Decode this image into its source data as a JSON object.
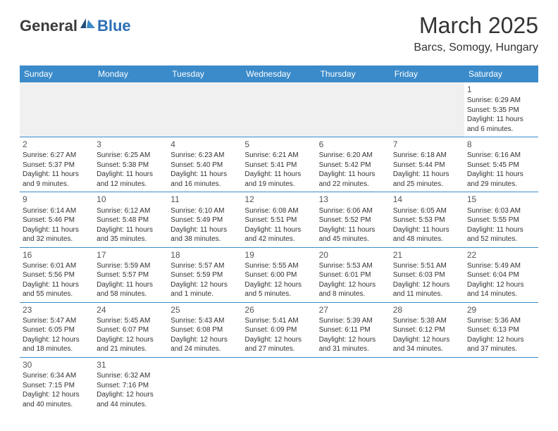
{
  "logo": {
    "part1": "General",
    "part2": "Blue"
  },
  "title": "March 2025",
  "location": "Barcs, Somogy, Hungary",
  "weekdays": [
    "Sunday",
    "Monday",
    "Tuesday",
    "Wednesday",
    "Thursday",
    "Friday",
    "Saturday"
  ],
  "colors": {
    "header_bg": "#3b8bca",
    "header_text": "#ffffff",
    "border": "#3b8bca",
    "logo_blue": "#2b6fb5",
    "logo_gray": "#3a3a3a"
  },
  "weeks": [
    [
      null,
      null,
      null,
      null,
      null,
      null,
      {
        "n": "1",
        "sr": "6:29 AM",
        "ss": "5:35 PM",
        "dl": "11 hours and 6 minutes."
      }
    ],
    [
      {
        "n": "2",
        "sr": "6:27 AM",
        "ss": "5:37 PM",
        "dl": "11 hours and 9 minutes."
      },
      {
        "n": "3",
        "sr": "6:25 AM",
        "ss": "5:38 PM",
        "dl": "11 hours and 12 minutes."
      },
      {
        "n": "4",
        "sr": "6:23 AM",
        "ss": "5:40 PM",
        "dl": "11 hours and 16 minutes."
      },
      {
        "n": "5",
        "sr": "6:21 AM",
        "ss": "5:41 PM",
        "dl": "11 hours and 19 minutes."
      },
      {
        "n": "6",
        "sr": "6:20 AM",
        "ss": "5:42 PM",
        "dl": "11 hours and 22 minutes."
      },
      {
        "n": "7",
        "sr": "6:18 AM",
        "ss": "5:44 PM",
        "dl": "11 hours and 25 minutes."
      },
      {
        "n": "8",
        "sr": "6:16 AM",
        "ss": "5:45 PM",
        "dl": "11 hours and 29 minutes."
      }
    ],
    [
      {
        "n": "9",
        "sr": "6:14 AM",
        "ss": "5:46 PM",
        "dl": "11 hours and 32 minutes."
      },
      {
        "n": "10",
        "sr": "6:12 AM",
        "ss": "5:48 PM",
        "dl": "11 hours and 35 minutes."
      },
      {
        "n": "11",
        "sr": "6:10 AM",
        "ss": "5:49 PM",
        "dl": "11 hours and 38 minutes."
      },
      {
        "n": "12",
        "sr": "6:08 AM",
        "ss": "5:51 PM",
        "dl": "11 hours and 42 minutes."
      },
      {
        "n": "13",
        "sr": "6:06 AM",
        "ss": "5:52 PM",
        "dl": "11 hours and 45 minutes."
      },
      {
        "n": "14",
        "sr": "6:05 AM",
        "ss": "5:53 PM",
        "dl": "11 hours and 48 minutes."
      },
      {
        "n": "15",
        "sr": "6:03 AM",
        "ss": "5:55 PM",
        "dl": "11 hours and 52 minutes."
      }
    ],
    [
      {
        "n": "16",
        "sr": "6:01 AM",
        "ss": "5:56 PM",
        "dl": "11 hours and 55 minutes."
      },
      {
        "n": "17",
        "sr": "5:59 AM",
        "ss": "5:57 PM",
        "dl": "11 hours and 58 minutes."
      },
      {
        "n": "18",
        "sr": "5:57 AM",
        "ss": "5:59 PM",
        "dl": "12 hours and 1 minute."
      },
      {
        "n": "19",
        "sr": "5:55 AM",
        "ss": "6:00 PM",
        "dl": "12 hours and 5 minutes."
      },
      {
        "n": "20",
        "sr": "5:53 AM",
        "ss": "6:01 PM",
        "dl": "12 hours and 8 minutes."
      },
      {
        "n": "21",
        "sr": "5:51 AM",
        "ss": "6:03 PM",
        "dl": "12 hours and 11 minutes."
      },
      {
        "n": "22",
        "sr": "5:49 AM",
        "ss": "6:04 PM",
        "dl": "12 hours and 14 minutes."
      }
    ],
    [
      {
        "n": "23",
        "sr": "5:47 AM",
        "ss": "6:05 PM",
        "dl": "12 hours and 18 minutes."
      },
      {
        "n": "24",
        "sr": "5:45 AM",
        "ss": "6:07 PM",
        "dl": "12 hours and 21 minutes."
      },
      {
        "n": "25",
        "sr": "5:43 AM",
        "ss": "6:08 PM",
        "dl": "12 hours and 24 minutes."
      },
      {
        "n": "26",
        "sr": "5:41 AM",
        "ss": "6:09 PM",
        "dl": "12 hours and 27 minutes."
      },
      {
        "n": "27",
        "sr": "5:39 AM",
        "ss": "6:11 PM",
        "dl": "12 hours and 31 minutes."
      },
      {
        "n": "28",
        "sr": "5:38 AM",
        "ss": "6:12 PM",
        "dl": "12 hours and 34 minutes."
      },
      {
        "n": "29",
        "sr": "5:36 AM",
        "ss": "6:13 PM",
        "dl": "12 hours and 37 minutes."
      }
    ],
    [
      {
        "n": "30",
        "sr": "6:34 AM",
        "ss": "7:15 PM",
        "dl": "12 hours and 40 minutes."
      },
      {
        "n": "31",
        "sr": "6:32 AM",
        "ss": "7:16 PM",
        "dl": "12 hours and 44 minutes."
      },
      null,
      null,
      null,
      null,
      null
    ]
  ],
  "labels": {
    "sunrise": "Sunrise:",
    "sunset": "Sunset:",
    "daylight": "Daylight:"
  }
}
